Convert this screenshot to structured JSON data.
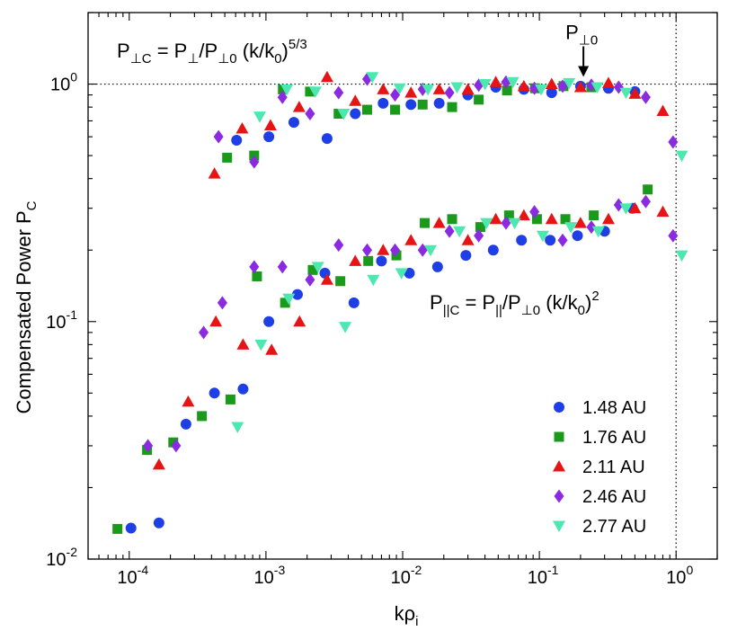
{
  "chart_data": {
    "type": "scatter",
    "xscale": "log",
    "yscale": "log",
    "xlim": [
      5e-05,
      2.0
    ],
    "ylim": [
      0.01,
      2.0
    ],
    "xlabel_main": "kρ",
    "xlabel_sub": "i",
    "ylabel_main": "Compensated Power P",
    "ylabel_sub": "C",
    "x_ticks": [
      {
        "value": 0.0001,
        "base": "10",
        "exp": "-4"
      },
      {
        "value": 0.001,
        "base": "10",
        "exp": "-3"
      },
      {
        "value": 0.01,
        "base": "10",
        "exp": "-2"
      },
      {
        "value": 0.1,
        "base": "10",
        "exp": "-1"
      },
      {
        "value": 1.0,
        "base": "10",
        "exp": "0"
      }
    ],
    "y_ticks": [
      {
        "value": 0.01,
        "base": "10",
        "exp": "-2"
      },
      {
        "value": 0.1,
        "base": "10",
        "exp": "-1"
      },
      {
        "value": 1.0,
        "base": "10",
        "exp": "0"
      }
    ],
    "reference_lines": [
      {
        "orientation": "horizontal",
        "value": 1.0,
        "style": "dotted"
      },
      {
        "orientation": "vertical",
        "value": 1.0,
        "style": "dotted"
      }
    ],
    "annotations": {
      "perp_formula": {
        "parts": [
          "P",
          "⊥C",
          " = P",
          "⊥",
          "/P",
          "⊥0",
          " (k/k",
          "0",
          ")",
          "5/3"
        ]
      },
      "par_formula": {
        "parts": [
          "P",
          "||C",
          " = P",
          "||",
          "/P",
          "⊥0",
          " (k/k",
          "0",
          ")",
          "2"
        ]
      },
      "arrow_label": {
        "main": "P",
        "sub": "⊥0",
        "x": 0.21,
        "y": 1.0
      }
    },
    "legend_position": "bottom-right",
    "series": [
      {
        "name": "1.48 AU",
        "color": "#1f3fe6",
        "marker": "circle",
        "perp": {
          "x": [
            0.00061,
            0.00105,
            0.0016,
            0.0028,
            0.0045,
            0.0072,
            0.0115,
            0.0185,
            0.03,
            0.048,
            0.077,
            0.123,
            0.2,
            0.32,
            0.5
          ],
          "y": [
            0.58,
            0.6,
            0.69,
            0.59,
            0.75,
            0.83,
            0.82,
            0.83,
            0.9,
            0.97,
            0.95,
            0.92,
            0.98,
            0.96,
            0.93
          ]
        },
        "par": {
          "x": [
            0.000103,
            0.000165,
            0.00026,
            0.00042,
            0.00068,
            0.00105,
            0.0017,
            0.0027,
            0.0044,
            0.007,
            0.0112,
            0.018,
            0.029,
            0.046,
            0.074,
            0.12,
            0.19,
            0.3,
            0.48
          ],
          "y": [
            0.0135,
            0.0142,
            0.037,
            0.05,
            0.052,
            0.1,
            0.13,
            0.16,
            0.12,
            0.18,
            0.16,
            0.17,
            0.19,
            0.2,
            0.22,
            0.22,
            0.23,
            0.24,
            0.3
          ]
        }
      },
      {
        "name": "1.76 AU",
        "color": "#1a9a1a",
        "marker": "square",
        "perp": {
          "x": [
            0.00052,
            0.00082,
            0.00133,
            0.0021,
            0.0034,
            0.0055,
            0.0088,
            0.014,
            0.023,
            0.036,
            0.058,
            0.093,
            0.15,
            0.24
          ],
          "y": [
            0.49,
            0.5,
            0.95,
            0.93,
            0.75,
            0.78,
            0.78,
            0.82,
            0.8,
            0.86,
            0.94,
            0.96,
            0.98,
            0.97
          ]
        },
        "par": {
          "x": [
            8.2e-05,
            0.000135,
            0.00021,
            0.00034,
            0.00055,
            0.00086,
            0.00138,
            0.0022,
            0.0035,
            0.0056,
            0.009,
            0.0145,
            0.023,
            0.037,
            0.06,
            0.096,
            0.155,
            0.25,
            0.62
          ],
          "y": [
            0.0134,
            0.0288,
            0.031,
            0.04,
            0.047,
            0.155,
            0.12,
            0.165,
            0.148,
            0.18,
            0.19,
            0.26,
            0.27,
            0.25,
            0.28,
            0.27,
            0.27,
            0.28,
            0.36
          ]
        }
      },
      {
        "name": "2.11 AU",
        "color": "#e61414",
        "marker": "triangle",
        "perp": {
          "x": [
            0.00042,
            0.00067,
            0.00108,
            0.00175,
            0.0028,
            0.0045,
            0.0072,
            0.0115,
            0.0185,
            0.03,
            0.048,
            0.077,
            0.123,
            0.2,
            0.32,
            0.5,
            0.8
          ],
          "y": [
            0.42,
            0.65,
            0.67,
            0.8,
            1.07,
            0.85,
            0.95,
            0.92,
            0.95,
            0.95,
            1.02,
            0.98,
            1.0,
            0.97,
            1.01,
            0.91,
            0.77
          ]
        },
        "par": {
          "x": [
            0.000165,
            0.00027,
            0.00043,
            0.00068,
            0.0011,
            0.00176,
            0.0028,
            0.0045,
            0.0072,
            0.0115,
            0.0185,
            0.03,
            0.048,
            0.077,
            0.123,
            0.2,
            0.32,
            0.5,
            0.8
          ],
          "y": [
            0.025,
            0.046,
            0.1,
            0.08,
            0.076,
            0.1,
            0.15,
            0.18,
            0.2,
            0.22,
            0.26,
            0.22,
            0.27,
            0.28,
            0.27,
            0.26,
            0.27,
            0.3,
            0.29
          ]
        }
      },
      {
        "name": "2.46 AU",
        "color": "#8a2be2",
        "marker": "diamond",
        "perp": {
          "x": [
            0.00045,
            0.00082,
            0.00132,
            0.0021,
            0.0034,
            0.0055,
            0.0088,
            0.014,
            0.022,
            0.036,
            0.057,
            0.092,
            0.148,
            0.24,
            0.38,
            0.6,
            0.95
          ],
          "y": [
            0.6,
            0.47,
            0.88,
            0.75,
            0.92,
            1.05,
            0.9,
            0.95,
            0.92,
            0.99,
            1.02,
            0.96,
            0.98,
            0.99,
            0.97,
            0.88,
            0.57
          ]
        },
        "par": {
          "x": [
            0.000137,
            0.00022,
            0.00035,
            0.00048,
            0.00082,
            0.00132,
            0.0021,
            0.0034,
            0.0055,
            0.0088,
            0.014,
            0.022,
            0.036,
            0.057,
            0.092,
            0.148,
            0.24,
            0.38,
            0.6,
            0.95
          ],
          "y": [
            0.03,
            0.03,
            0.09,
            0.12,
            0.17,
            0.17,
            0.15,
            0.21,
            0.2,
            0.2,
            0.2,
            0.24,
            0.23,
            0.26,
            0.29,
            0.22,
            0.25,
            0.31,
            0.32,
            0.23
          ]
        }
      },
      {
        "name": "2.77 AU",
        "color": "#4de8b0",
        "marker": "triangle-down",
        "perp": {
          "x": [
            0.0009,
            0.00142,
            0.0023,
            0.0037,
            0.006,
            0.0095,
            0.0153,
            0.025,
            0.04,
            0.064,
            0.103,
            0.165,
            0.265,
            0.43,
            1.1
          ],
          "y": [
            0.73,
            0.95,
            0.93,
            0.75,
            1.07,
            0.96,
            0.95,
            0.97,
            1.0,
            1.02,
            0.95,
            1.01,
            0.97,
            0.92,
            0.5
          ]
        },
        "par": {
          "x": [
            0.00062,
            0.00092,
            0.00147,
            0.0024,
            0.0038,
            0.0061,
            0.0098,
            0.016,
            0.026,
            0.041,
            0.066,
            0.106,
            0.17,
            0.27,
            0.43,
            1.1
          ],
          "y": [
            0.036,
            0.08,
            0.125,
            0.17,
            0.095,
            0.15,
            0.16,
            0.2,
            0.24,
            0.26,
            0.26,
            0.23,
            0.25,
            0.24,
            0.3,
            0.19
          ]
        }
      }
    ]
  }
}
